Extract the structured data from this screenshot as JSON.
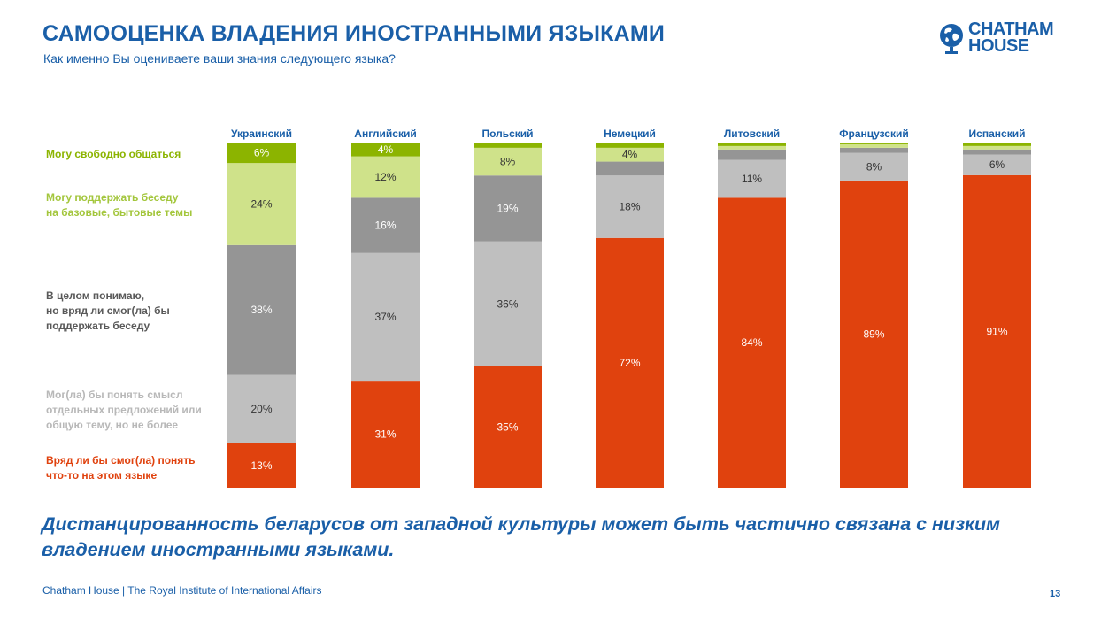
{
  "header": {
    "title": "САМООЦЕНКА ВЛАДЕНИЯ ИНОСТРАННЫМИ ЯЗЫКАМИ",
    "subtitle": "Как именно Вы оцениваете ваши знания следующего языка?"
  },
  "logo": {
    "text": "CHATHAM HOUSE",
    "icon": "globe-icon"
  },
  "chart_data": {
    "type": "bar",
    "stacked": true,
    "orientation": "vertical",
    "categories": [
      "Украинский",
      "Английский",
      "Польский",
      "Немецкий",
      "Литовский",
      "Французский",
      "Испанский"
    ],
    "series": [
      {
        "name": "Вряд ли бы смог(ла) понять\nчто-то на этом языке",
        "color": "#e0420e",
        "label_color": "#ffffff",
        "values": [
          13,
          31,
          35,
          72,
          84,
          89,
          91
        ]
      },
      {
        "name": "Мог(ла) бы понять смысл\nотдельных предложений или\nобщую тему, но не более",
        "color": "#bfbfbf",
        "label_color": "#333333",
        "values": [
          20,
          37,
          36,
          18,
          11,
          8,
          6
        ]
      },
      {
        "name": "В целом понимаю,\nно вряд ли смог(ла) бы\nподдержать беседу",
        "color": "#959595",
        "label_color": "#ffffff",
        "values": [
          38,
          16,
          19,
          4,
          3,
          1.5,
          1.5
        ]
      },
      {
        "name": "Могу поддержать беседу\nна базовые, бытовые темы",
        "color": "#cfe28a",
        "label_color": "#333333",
        "values": [
          24,
          12,
          8,
          4,
          1,
          1,
          1
        ]
      },
      {
        "name": "Могу свободно общаться",
        "color": "#8cb400",
        "label_color": "#ffffff",
        "values": [
          6,
          4,
          1.5,
          1.5,
          1,
          0.5,
          1
        ]
      }
    ],
    "data_labels": [
      [
        "13%",
        "31%",
        "35%",
        "72%",
        "84%",
        "89%",
        "91%"
      ],
      [
        "20%",
        "37%",
        "36%",
        "18%",
        "11%",
        "8%",
        "6%"
      ],
      [
        "38%",
        "16%",
        "19%",
        "",
        "",
        "",
        ""
      ],
      [
        "24%",
        "12%",
        "8%",
        "4%",
        "",
        "",
        ""
      ],
      [
        "6%",
        "4%",
        "",
        "",
        "",
        "",
        ""
      ]
    ],
    "legend_colors": [
      "#e0420e",
      "#b8b8b8",
      "#595959",
      "#a3c63c",
      "#8cb400"
    ],
    "ylim": [
      0,
      100
    ],
    "legend_placement": "left",
    "grid": false
  },
  "conclusion": "Дистанцированность беларусов от западной культуры может быть частично связана с низким владением иностранными языками.",
  "footer": {
    "text": "Chatham House  |  The Royal Institute of International Affairs",
    "page": "13"
  }
}
